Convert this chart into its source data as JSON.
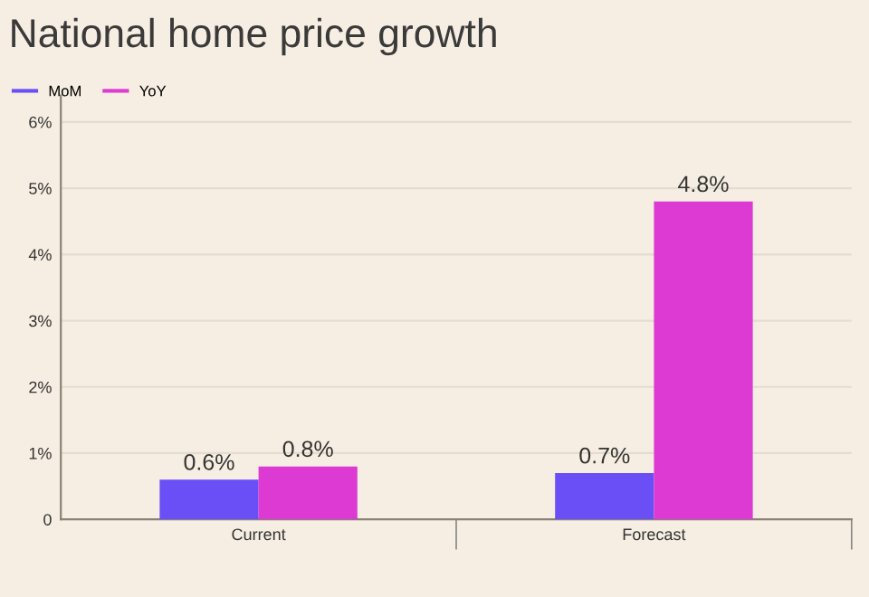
{
  "chart_data": {
    "type": "bar",
    "title": "National home price growth",
    "categories": [
      "Current",
      "Forecast"
    ],
    "series": [
      {
        "name": "MoM",
        "color": "#6a4ef6",
        "values": [
          0.6,
          0.7
        ],
        "value_labels": [
          "0.6%",
          "0.7%"
        ]
      },
      {
        "name": "YoY",
        "color": "#dc3ad3",
        "values": [
          0.8,
          4.8
        ],
        "value_labels": [
          "0.8%",
          "4.8%"
        ]
      }
    ],
    "ylim": [
      0,
      6.4
    ],
    "yticks": [
      {
        "value": 0,
        "label": "0"
      },
      {
        "value": 1,
        "label": "1%"
      },
      {
        "value": 2,
        "label": "2%"
      },
      {
        "value": 3,
        "label": "3%"
      },
      {
        "value": 4,
        "label": "4%"
      },
      {
        "value": 5,
        "label": "5%"
      },
      {
        "value": 6,
        "label": "6%"
      }
    ],
    "grid": "y",
    "legend": "top left"
  }
}
